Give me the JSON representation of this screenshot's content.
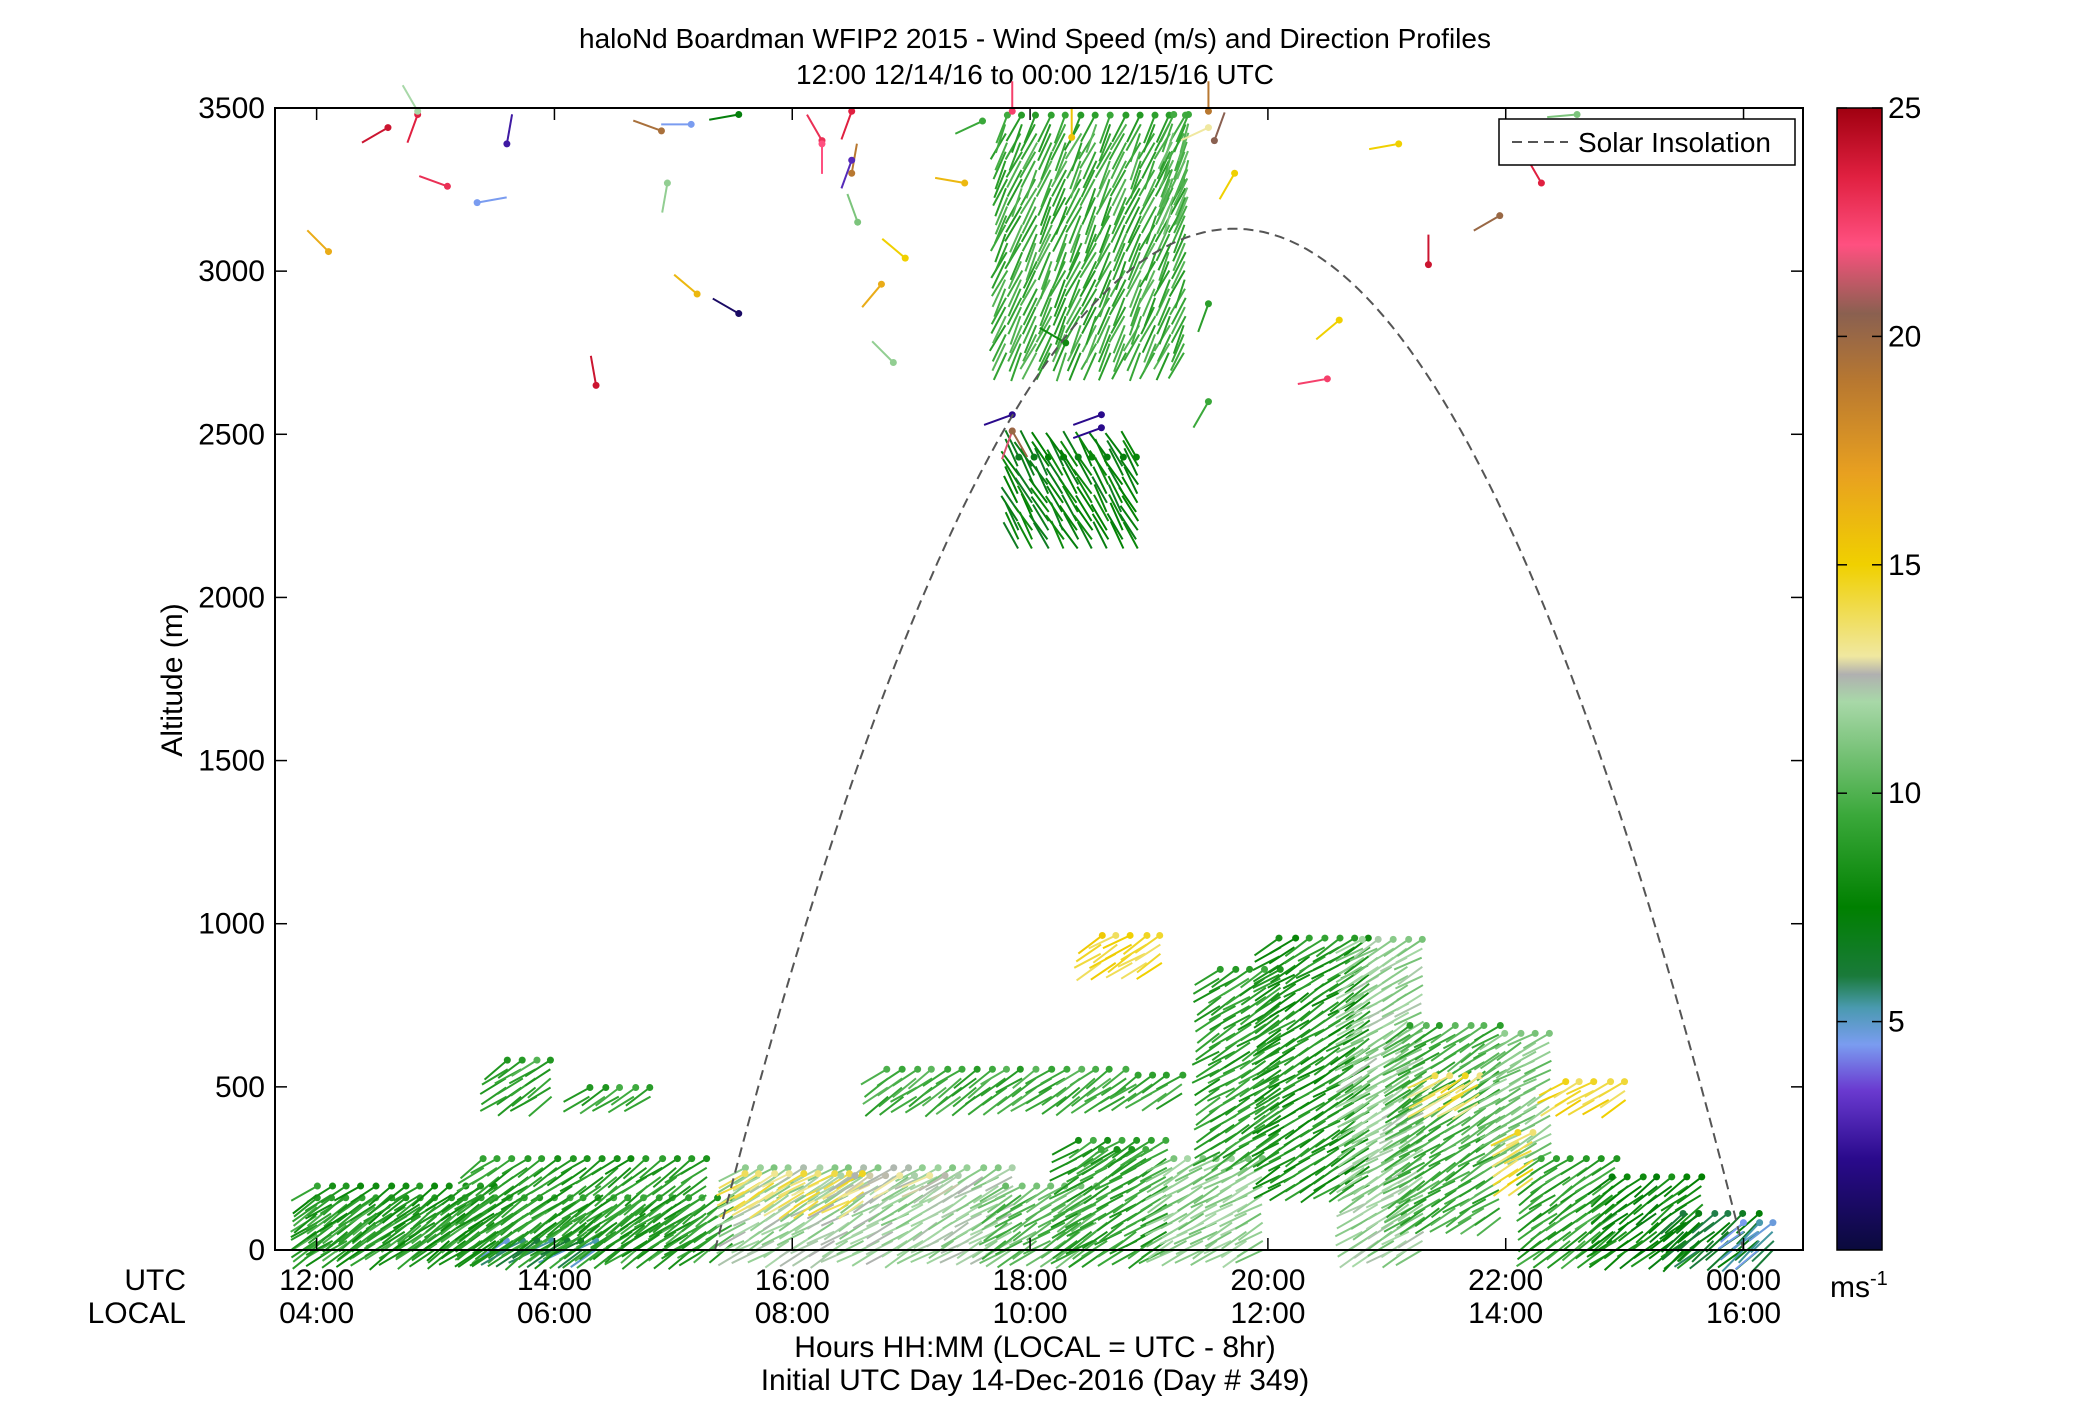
{
  "chart_data": {
    "type": "scatter",
    "title": "haloNd Boardman WFIP2 2015 - Wind Speed (m/s) and Direction Profiles",
    "subtitle": "12:00 12/14/16 to 00:00 12/15/16  UTC",
    "ylabel": "Altitude (m)",
    "xlabel_line1": "Hours HH:MM  (LOCAL = UTC - 8hr)",
    "xlabel_line2": "Initial UTC Day 14-Dec-2016 (Day # 349)",
    "x_row_label_utc": "UTC",
    "x_row_label_local": "LOCAL",
    "xlim_hours": [
      11.65,
      24.5
    ],
    "ylim": [
      0,
      3500
    ],
    "x_ticks_hours": [
      12,
      14,
      16,
      18,
      20,
      22,
      24
    ],
    "x_tick_labels_utc": [
      "12:00",
      "14:00",
      "16:00",
      "18:00",
      "20:00",
      "22:00",
      "00:00"
    ],
    "x_tick_labels_local": [
      "04:00",
      "06:00",
      "08:00",
      "10:00",
      "12:00",
      "14:00",
      "16:00"
    ],
    "y_ticks": [
      0,
      500,
      1000,
      1500,
      2000,
      2500,
      3000,
      3500
    ],
    "y_tick_labels": [
      "0",
      "500",
      "1000",
      "1500",
      "2000",
      "2500",
      "3000",
      "3500"
    ],
    "colorbar": {
      "range": [
        0,
        25
      ],
      "ticks": [
        5,
        10,
        15,
        20,
        25
      ],
      "tick_labels": [
        "5",
        "10",
        "15",
        "20",
        "25"
      ],
      "unit_base": "ms",
      "unit_exp": "-1",
      "colormap": [
        [
          0,
          "#0a0a3c"
        ],
        [
          2,
          "#2a0a8c"
        ],
        [
          3.5,
          "#6a3ad0"
        ],
        [
          4.5,
          "#7a9cf0"
        ],
        [
          5.3,
          "#4a9ab0"
        ],
        [
          6,
          "#1a7a3a"
        ],
        [
          7.5,
          "#008000"
        ],
        [
          9.5,
          "#3aa83a"
        ],
        [
          11,
          "#7cc47c"
        ],
        [
          12,
          "#a8d8a8"
        ],
        [
          12.6,
          "#b0b0b0"
        ],
        [
          13,
          "#f0e8a0"
        ],
        [
          15,
          "#f0d000"
        ],
        [
          17,
          "#e8a020"
        ],
        [
          19,
          "#b87830"
        ],
        [
          20.5,
          "#8a6050"
        ],
        [
          22,
          "#ff5080"
        ],
        [
          23.5,
          "#e02040"
        ],
        [
          25,
          "#a00010"
        ]
      ]
    },
    "legend": {
      "series": "Solar Insolation",
      "placement": "top-right",
      "style": "dashed",
      "color": "#555555"
    },
    "solar_insolation": {
      "rise_hour": 15.35,
      "set_hour": 24.0,
      "peak_hour": 19.72,
      "peak_altitude": 3130
    },
    "wind_barb_groups": [
      {
        "t0": 12.0,
        "t1": 15.6,
        "z0": 20,
        "z1": 180,
        "spd": 9.3,
        "dir": 235,
        "note": "surface layer green"
      },
      {
        "t0": 13.6,
        "t1": 14.4,
        "z0": 0,
        "z1": 40,
        "spd": 5.5,
        "dir": 240
      },
      {
        "t0": 12.0,
        "t1": 13.6,
        "z0": 0,
        "z1": 200,
        "spd": 8.5,
        "dir": 235
      },
      {
        "t0": 13.4,
        "t1": 15.3,
        "z0": 0,
        "z1": 280,
        "spd": 8.8,
        "dir": 235
      },
      {
        "t0": 15.6,
        "t1": 17.9,
        "z0": 0,
        "z1": 260,
        "spd": 11.8,
        "dir": 240
      },
      {
        "t0": 15.6,
        "t1": 16.6,
        "z0": 150,
        "z1": 240,
        "spd": 13.8,
        "dir": 240
      },
      {
        "t0": 16.4,
        "t1": 17.4,
        "z0": 200,
        "z1": 250,
        "spd": 12.6,
        "dir": 240
      },
      {
        "t0": 17.8,
        "t1": 18.6,
        "z0": 0,
        "z1": 220,
        "spd": 10.2,
        "dir": 238
      },
      {
        "t0": 18.4,
        "t1": 19.2,
        "z0": 0,
        "z1": 350,
        "spd": 9.0,
        "dir": 238
      },
      {
        "t0": 19.2,
        "t1": 20.0,
        "z0": 0,
        "z1": 300,
        "spd": 11.3,
        "dir": 240
      },
      {
        "t0": 19.6,
        "t1": 20.2,
        "z0": 300,
        "z1": 860,
        "spd": 9.0,
        "dir": 238
      },
      {
        "t0": 20.1,
        "t1": 20.9,
        "z0": 200,
        "z1": 980,
        "spd": 8.5,
        "dir": 238
      },
      {
        "t0": 20.8,
        "t1": 21.3,
        "z0": 0,
        "z1": 960,
        "spd": 11.6,
        "dir": 240
      },
      {
        "t0": 21.2,
        "t1": 22.0,
        "z0": 100,
        "z1": 700,
        "spd": 9.6,
        "dir": 238
      },
      {
        "t0": 21.4,
        "t1": 21.8,
        "z0": 450,
        "z1": 560,
        "spd": 13.8,
        "dir": 240
      },
      {
        "t0": 22.0,
        "t1": 22.4,
        "z0": 300,
        "z1": 690,
        "spd": 11.0,
        "dir": 240
      },
      {
        "t0": 22.1,
        "t1": 22.3,
        "z0": 220,
        "z1": 380,
        "spd": 14.2,
        "dir": 240
      },
      {
        "t0": 22.3,
        "t1": 23.0,
        "z0": 0,
        "z1": 300,
        "spd": 9.2,
        "dir": 235
      },
      {
        "t0": 22.5,
        "t1": 23.0,
        "z0": 460,
        "z1": 530,
        "spd": 14.5,
        "dir": 240
      },
      {
        "t0": 22.9,
        "t1": 23.7,
        "z0": 0,
        "z1": 240,
        "spd": 7.8,
        "dir": 232
      },
      {
        "t0": 23.5,
        "t1": 24.2,
        "z0": 0,
        "z1": 120,
        "spd": 6.6,
        "dir": 230
      },
      {
        "t0": 24.0,
        "t1": 24.25,
        "z0": 0,
        "z1": 110,
        "spd": 5.3,
        "dir": 230
      },
      {
        "t0": 13.6,
        "t1": 14.0,
        "z0": 470,
        "z1": 600,
        "spd": 9.3,
        "dir": 235
      },
      {
        "t0": 14.3,
        "t1": 14.8,
        "z0": 470,
        "z1": 520,
        "spd": 9.3,
        "dir": 235
      },
      {
        "t0": 16.8,
        "t1": 18.8,
        "z0": 470,
        "z1": 580,
        "spd": 9.5,
        "dir": 235
      },
      {
        "t0": 18.9,
        "t1": 19.3,
        "z0": 480,
        "z1": 560,
        "spd": 9.5,
        "dir": 235
      },
      {
        "t0": 18.6,
        "t1": 19.0,
        "z0": 280,
        "z1": 320,
        "spd": 9.0,
        "dir": 235
      },
      {
        "t0": 18.6,
        "t1": 19.1,
        "z0": 880,
        "z1": 970,
        "spd": 14.5,
        "dir": 238
      },
      {
        "t0": 17.9,
        "t1": 19.0,
        "z0": 2150,
        "z1": 2450,
        "spd": 7.3,
        "dir": 330
      },
      {
        "t0": 17.8,
        "t1": 19.4,
        "z0": 2750,
        "z1": 3480,
        "spd": 9.5,
        "dir": 205
      },
      {
        "t0": 19.2,
        "t1": 19.4,
        "z0": 3200,
        "z1": 3480,
        "spd": 10.2,
        "dir": 200
      }
    ],
    "scattered_barbs": [
      {
        "t": 12.1,
        "z": 3060,
        "spd": 16.5,
        "dir": 315
      },
      {
        "t": 12.6,
        "z": 3440,
        "spd": 24.0,
        "dir": 240
      },
      {
        "t": 12.85,
        "z": 3480,
        "spd": 23.5,
        "dir": 200
      },
      {
        "t": 12.85,
        "z": 3490,
        "spd": 12.0,
        "dir": 330
      },
      {
        "t": 13.1,
        "z": 3260,
        "spd": 23.0,
        "dir": 290
      },
      {
        "t": 13.35,
        "z": 3210,
        "spd": 4.5,
        "dir": 80
      },
      {
        "t": 13.6,
        "z": 3390,
        "spd": 2.5,
        "dir": 10
      },
      {
        "t": 14.35,
        "z": 2650,
        "spd": 24.0,
        "dir": 350
      },
      {
        "t": 14.9,
        "z": 3430,
        "spd": 19.5,
        "dir": 290
      },
      {
        "t": 14.95,
        "z": 3270,
        "spd": 11.5,
        "dir": 190
      },
      {
        "t": 15.15,
        "z": 3450,
        "spd": 4.5,
        "dir": 270
      },
      {
        "t": 15.2,
        "z": 2930,
        "spd": 16.0,
        "dir": 310
      },
      {
        "t": 15.55,
        "z": 2870,
        "spd": 1.0,
        "dir": 300
      },
      {
        "t": 15.55,
        "z": 3480,
        "spd": 7.2,
        "dir": 260
      },
      {
        "t": 16.25,
        "z": 3400,
        "spd": 23.0,
        "dir": 330
      },
      {
        "t": 16.25,
        "z": 3390,
        "spd": 22.0,
        "dir": 180
      },
      {
        "t": 16.5,
        "z": 3490,
        "spd": 23.5,
        "dir": 200
      },
      {
        "t": 16.5,
        "z": 3300,
        "spd": 19.0,
        "dir": 10
      },
      {
        "t": 16.5,
        "z": 3340,
        "spd": 3.0,
        "dir": 200
      },
      {
        "t": 16.55,
        "z": 3150,
        "spd": 11.0,
        "dir": 340
      },
      {
        "t": 16.95,
        "z": 3040,
        "spd": 15.0,
        "dir": 310
      },
      {
        "t": 16.75,
        "z": 2960,
        "spd": 16.5,
        "dir": 220
      },
      {
        "t": 16.85,
        "z": 2720,
        "spd": 11.5,
        "dir": 315
      },
      {
        "t": 17.45,
        "z": 3270,
        "spd": 16.0,
        "dir": 280
      },
      {
        "t": 17.6,
        "z": 3460,
        "spd": 9.5,
        "dir": 245
      },
      {
        "t": 17.85,
        "z": 2560,
        "spd": 2.0,
        "dir": 250
      },
      {
        "t": 17.85,
        "z": 2510,
        "spd": 21.5,
        "dir": 200
      },
      {
        "t": 17.85,
        "z": 2510,
        "spd": 20.0,
        "dir": 150
      },
      {
        "t": 17.85,
        "z": 3490,
        "spd": 22.5,
        "dir": 0
      },
      {
        "t": 18.3,
        "z": 2780,
        "spd": 8.0,
        "dir": 300
      },
      {
        "t": 18.35,
        "z": 3410,
        "spd": 15.5,
        "dir": 0
      },
      {
        "t": 18.6,
        "z": 2560,
        "spd": 2.0,
        "dir": 250
      },
      {
        "t": 18.6,
        "z": 2520,
        "spd": 2.0,
        "dir": 250
      },
      {
        "t": 19.5,
        "z": 3490,
        "spd": 19.0,
        "dir": 0
      },
      {
        "t": 19.5,
        "z": 3440,
        "spd": 13.0,
        "dir": 245
      },
      {
        "t": 19.55,
        "z": 3400,
        "spd": 20.5,
        "dir": 20
      },
      {
        "t": 19.5,
        "z": 2900,
        "spd": 9.0,
        "dir": 200
      },
      {
        "t": 19.5,
        "z": 2600,
        "spd": 9.5,
        "dir": 210
      },
      {
        "t": 19.72,
        "z": 3300,
        "spd": 15.0,
        "dir": 210
      },
      {
        "t": 20.5,
        "z": 2670,
        "spd": 22.5,
        "dir": 260
      },
      {
        "t": 20.6,
        "z": 2850,
        "spd": 15.0,
        "dir": 230
      },
      {
        "t": 21.1,
        "z": 3390,
        "spd": 15.0,
        "dir": 260
      },
      {
        "t": 21.35,
        "z": 3020,
        "spd": 24.0,
        "dir": 0
      },
      {
        "t": 21.95,
        "z": 3170,
        "spd": 20.0,
        "dir": 240
      },
      {
        "t": 22.3,
        "z": 3270,
        "spd": 23.5,
        "dir": 330
      },
      {
        "t": 22.6,
        "z": 3480,
        "spd": 11.0,
        "dir": 265
      }
    ]
  }
}
